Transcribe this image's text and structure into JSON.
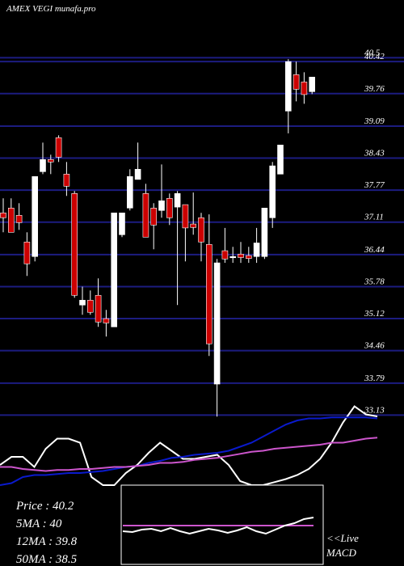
{
  "chart_data": {
    "type": "candlestick",
    "title": "AMEX  VEGI munafa.pro",
    "ylim": [
      33.02,
      41.69
    ],
    "yticks": [
      40.5,
      40.42,
      39.76,
      39.09,
      38.43,
      37.77,
      37.11,
      36.44,
      35.78,
      35.12,
      34.46,
      33.79,
      33.13
    ],
    "grid": true,
    "grid_color": "#1c1c80",
    "up_color": "#ffffff",
    "down_color": "#cc0000",
    "open": [
      37.3,
      37.4,
      37.25,
      36.7,
      36.4,
      38.15,
      38.4,
      38.85,
      38.1,
      37.7,
      35.4,
      35.5,
      35.6,
      35.12,
      34.95,
      36.85,
      37.4,
      37.99,
      37.7,
      37.4,
      37.35,
      37.6,
      37.42,
      37.47,
      37.07,
      37.2,
      36.65,
      33.77,
      36.52,
      36.38,
      36.45,
      36.42,
      36.4,
      36.4,
      37.2,
      38.1,
      39.4,
      40.15,
      40.0,
      39.8
    ],
    "high": [
      37.6,
      37.6,
      37.5,
      36.9,
      38.05,
      38.75,
      38.5,
      38.9,
      38.35,
      37.75,
      35.78,
      35.7,
      35.95,
      35.3,
      37.3,
      37.3,
      38.2,
      38.75,
      37.9,
      37.5,
      38.3,
      37.7,
      37.75,
      37.47,
      37.72,
      37.3,
      37.27,
      36.35,
      36.99,
      36.6,
      36.7,
      36.6,
      36.99,
      37.4,
      38.35,
      38.7,
      40.47,
      40.42,
      40.2,
      40.1
    ],
    "low": [
      36.9,
      36.9,
      36.95,
      36.0,
      36.3,
      38.1,
      38.1,
      38.35,
      37.65,
      35.55,
      35.2,
      35.2,
      34.95,
      34.75,
      34.95,
      36.8,
      37.35,
      37.99,
      36.8,
      36.55,
      37.2,
      37.05,
      35.4,
      36.3,
      36.85,
      36.3,
      34.35,
      33.1,
      36.27,
      36.27,
      36.27,
      36.27,
      36.27,
      36.35,
      36.99,
      38.1,
      38.94,
      39.6,
      39.55,
      39.75
    ],
    "close": [
      37.2,
      36.9,
      37.1,
      36.25,
      38.05,
      38.4,
      38.35,
      38.45,
      37.85,
      35.6,
      35.5,
      35.25,
      35.05,
      35.03,
      37.3,
      37.3,
      38.05,
      38.2,
      36.8,
      37.05,
      37.55,
      37.2,
      37.7,
      36.99,
      37.0,
      36.7,
      34.6,
      36.27,
      36.35,
      36.4,
      36.38,
      36.36,
      36.68,
      37.4,
      38.27,
      38.7,
      40.42,
      39.85,
      39.74,
      40.1
    ],
    "indicators": {
      "ylim": [
        0,
        100
      ],
      "series": [
        {
          "color": "#ffffff",
          "values": [
            36,
            44,
            44,
            34,
            52,
            62,
            62,
            58,
            24,
            16,
            16,
            28,
            36,
            48,
            58,
            50,
            42,
            42,
            44,
            46,
            36,
            20,
            16,
            16,
            19,
            22,
            26,
            32,
            42,
            58,
            78,
            94,
            86,
            84
          ]
        },
        {
          "color": "#0a1acc",
          "values": [
            16,
            18,
            24,
            26,
            26,
            27,
            28,
            28,
            29,
            30,
            32,
            34,
            35,
            38,
            40,
            43,
            44,
            46,
            47,
            48,
            50,
            54,
            58,
            64,
            70,
            76,
            80,
            82,
            82,
            83,
            83,
            83,
            83,
            82
          ]
        },
        {
          "color": "#cc55cc",
          "values": [
            34,
            34,
            32,
            31,
            30,
            31,
            31,
            32,
            32,
            33,
            34,
            34,
            35,
            36,
            38,
            38,
            39,
            41,
            42,
            43,
            45,
            47,
            49,
            50,
            52,
            53,
            54,
            55,
            56,
            58,
            58,
            60,
            62,
            63
          ]
        }
      ]
    },
    "macd": {
      "ylim": [
        -50,
        50
      ],
      "series": [
        {
          "color": "#cc55cc",
          "values": [
            0,
            0,
            0,
            0,
            0,
            0,
            0,
            0,
            0,
            0,
            0,
            0,
            0,
            0,
            0,
            0,
            0,
            0,
            0,
            0,
            0
          ]
        },
        {
          "color": "#ffffff",
          "values": [
            -7,
            -8,
            -5,
            -4,
            -7,
            -3,
            -7,
            -10,
            -7,
            -4,
            -6,
            -9,
            -6,
            -2,
            -7,
            -10,
            -5,
            0,
            3,
            8,
            10
          ]
        }
      ]
    },
    "summary": [
      "Price   : 40.2",
      "5MA : 40",
      "12MA : 39.8",
      "50MA : 38.5"
    ],
    "live_label": "<<Live",
    "macd_label": "MACD"
  }
}
